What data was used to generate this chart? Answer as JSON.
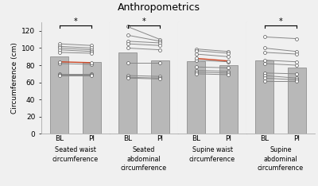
{
  "title": "Anthropometrics",
  "ylabel": "Circumference (cm)",
  "ylim": [
    0,
    130
  ],
  "yticks": [
    0,
    20,
    40,
    60,
    80,
    100,
    120
  ],
  "groups": [
    {
      "label": "Seated waist\ncircumference",
      "bar_bl": 90,
      "bar_pi": 84,
      "sig": true,
      "participants_bl": [
        105,
        102,
        100,
        98,
        95,
        84,
        82,
        70,
        69,
        68
      ],
      "participants_pi": [
        103,
        100,
        98,
        96,
        94,
        83,
        81,
        70,
        69,
        68
      ],
      "highlight_bl": 84,
      "highlight_pi": 83
    },
    {
      "label": "Seated\nabdominal\ncircumference",
      "bar_bl": 95,
      "bar_pi": 86,
      "sig": true,
      "participants_bl": [
        125,
        115,
        108,
        105,
        100,
        83,
        68,
        66,
        65
      ],
      "participants_pi": [
        110,
        108,
        106,
        103,
        98,
        83,
        67,
        65,
        64
      ],
      "highlight_bl": 125,
      "highlight_pi": 83
    },
    {
      "label": "Supine waist\ncircumference",
      "bar_bl": 85,
      "bar_pi": 80,
      "sig": false,
      "participants_bl": [
        99,
        97,
        93,
        88,
        86,
        78,
        74,
        72,
        70
      ],
      "participants_pi": [
        96,
        94,
        90,
        85,
        84,
        77,
        73,
        71,
        69
      ],
      "highlight_bl": 88,
      "highlight_pi": 85
    },
    {
      "label": "Supine\nabdominal\ncircumference",
      "bar_bl": 86,
      "bar_pi": 77,
      "sig": true,
      "participants_bl": [
        113,
        100,
        95,
        86,
        82,
        71,
        68,
        65,
        62
      ],
      "participants_pi": [
        111,
        96,
        93,
        84,
        80,
        70,
        65,
        63,
        62
      ],
      "highlight_bl": 113,
      "highlight_pi": 84
    }
  ],
  "bar_color": "#b8b8b8",
  "bar_edge_color": "#909090",
  "line_color": "#888888",
  "highlight_color": "#cc4422",
  "dot_color": "white",
  "dot_edge_color": "#555555",
  "bg_color": "#f0f0f0",
  "border_color": "#aaaaaa",
  "separator_color": "#cccccc"
}
